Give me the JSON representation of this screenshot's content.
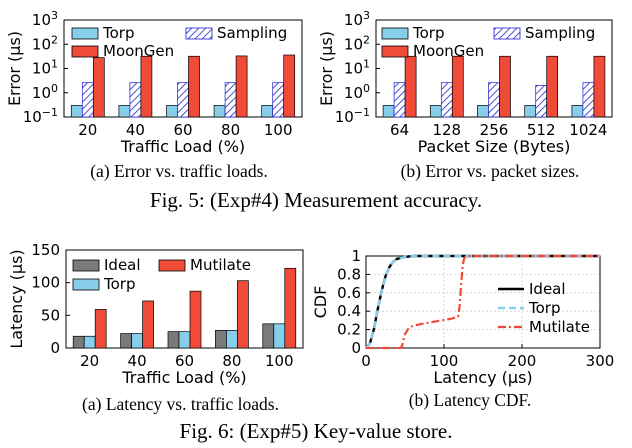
{
  "figures": [
    {
      "caption": "Fig. 5: (Exp#4) Measurement accuracy."
    },
    {
      "caption": "Fig. 6: (Exp#5) Key-value store."
    }
  ],
  "colors": {
    "torp": "#87CEEB",
    "sampling": "#1f1fd0",
    "moongen": "#F04A38",
    "ideal": "#7a7a7a",
    "mutilate": "#F04A38",
    "cdf_ideal": "#000000",
    "cdf_torp": "#87CEEB",
    "cdf_mutilate": "#F04A38"
  },
  "chart_data": [
    {
      "id": "a5",
      "type": "bar",
      "caption": "(a) Error vs. traffic loads.",
      "xlabel": "Traffic Load (%)",
      "ylabel": "Error (μs)",
      "yscale": "log",
      "ylim": [
        0.1,
        1000
      ],
      "yticks": [
        {
          "value": 0.1,
          "base": "10",
          "exp": "−1"
        },
        {
          "value": 1,
          "base": "10",
          "exp": "0"
        },
        {
          "value": 10,
          "base": "10",
          "exp": "1"
        },
        {
          "value": 100,
          "base": "10",
          "exp": "2"
        },
        {
          "value": 1000,
          "base": "10",
          "exp": "3"
        }
      ],
      "categories": [
        "20",
        "40",
        "60",
        "80",
        "100"
      ],
      "legend_position": "top",
      "series": [
        {
          "name": "Torp",
          "values": [
            0.3,
            0.3,
            0.3,
            0.3,
            0.3
          ]
        },
        {
          "name": "Sampling",
          "values": [
            2.6,
            2.6,
            2.6,
            2.6,
            2.6
          ]
        },
        {
          "name": "MoonGen",
          "values": [
            28,
            32,
            32,
            33,
            36
          ]
        }
      ]
    },
    {
      "id": "b5",
      "type": "bar",
      "caption": "(b) Error vs. packet sizes.",
      "xlabel": "Packet Size (Bytes)",
      "ylabel": "Error (μs)",
      "yscale": "log",
      "ylim": [
        0.1,
        1000
      ],
      "yticks": [
        {
          "value": 0.1,
          "base": "10",
          "exp": "−1"
        },
        {
          "value": 1,
          "base": "10",
          "exp": "0"
        },
        {
          "value": 10,
          "base": "10",
          "exp": "1"
        },
        {
          "value": 100,
          "base": "10",
          "exp": "2"
        },
        {
          "value": 1000,
          "base": "10",
          "exp": "3"
        }
      ],
      "categories": [
        "64",
        "128",
        "256",
        "512",
        "1024"
      ],
      "legend_position": "top",
      "series": [
        {
          "name": "Torp",
          "values": [
            0.3,
            0.3,
            0.3,
            0.3,
            0.3
          ]
        },
        {
          "name": "Sampling",
          "values": [
            2.6,
            2.6,
            2.6,
            2.0,
            2.6
          ]
        },
        {
          "name": "MoonGen",
          "values": [
            32,
            32,
            32,
            32,
            32
          ]
        }
      ]
    },
    {
      "id": "a6",
      "type": "bar",
      "caption": "(a) Latency vs. traffic loads.",
      "xlabel": "Traffic Load (%)",
      "ylabel": "Latency (μs)",
      "yscale": "linear",
      "ylim": [
        0,
        150
      ],
      "yticks": [
        0,
        50,
        100,
        150
      ],
      "categories": [
        "20",
        "40",
        "60",
        "80",
        "100"
      ],
      "legend_position": "top",
      "series": [
        {
          "name": "Ideal",
          "values": [
            18,
            22,
            25,
            27,
            37
          ]
        },
        {
          "name": "Torp",
          "values": [
            18,
            22,
            25,
            27,
            37
          ]
        },
        {
          "name": "Mutilate",
          "values": [
            59,
            72,
            87,
            103,
            122
          ]
        }
      ]
    },
    {
      "id": "b6",
      "type": "line",
      "caption": "(b) Latency CDF.",
      "xlabel": "Latency (μs)",
      "ylabel": "CDF",
      "xlim": [
        0,
        300
      ],
      "ylim": [
        0,
        1
      ],
      "xticks": [
        0,
        100,
        200,
        300
      ],
      "yticks": [
        "0",
        "0.2",
        "0.4",
        "0.6",
        "0.8",
        "1"
      ],
      "grid": true,
      "legend_position": "center-right",
      "series": [
        {
          "name": "Ideal",
          "style": "solid",
          "x": [
            0,
            5,
            10,
            15,
            20,
            25,
            30,
            35,
            40,
            50,
            60,
            80,
            100,
            300
          ],
          "y": [
            0,
            0.05,
            0.2,
            0.42,
            0.62,
            0.78,
            0.88,
            0.94,
            0.97,
            0.99,
            1.0,
            1.0,
            1.0,
            1.0
          ]
        },
        {
          "name": "Torp",
          "style": "dashed",
          "x": [
            0,
            5,
            10,
            15,
            20,
            25,
            30,
            35,
            40,
            50,
            60,
            80,
            100,
            300
          ],
          "y": [
            0,
            0.05,
            0.2,
            0.42,
            0.62,
            0.78,
            0.88,
            0.94,
            0.97,
            0.99,
            1.0,
            1.0,
            1.0,
            1.0
          ]
        },
        {
          "name": "Mutilate",
          "style": "dashdot",
          "x": [
            0,
            44,
            46,
            50,
            55,
            60,
            70,
            90,
            110,
            118,
            120,
            122,
            124,
            126,
            130,
            140,
            300
          ],
          "y": [
            0,
            0,
            0.02,
            0.15,
            0.22,
            0.24,
            0.26,
            0.29,
            0.32,
            0.34,
            0.45,
            0.7,
            0.9,
            0.98,
            1.0,
            1.0,
            1.0
          ]
        }
      ]
    }
  ]
}
